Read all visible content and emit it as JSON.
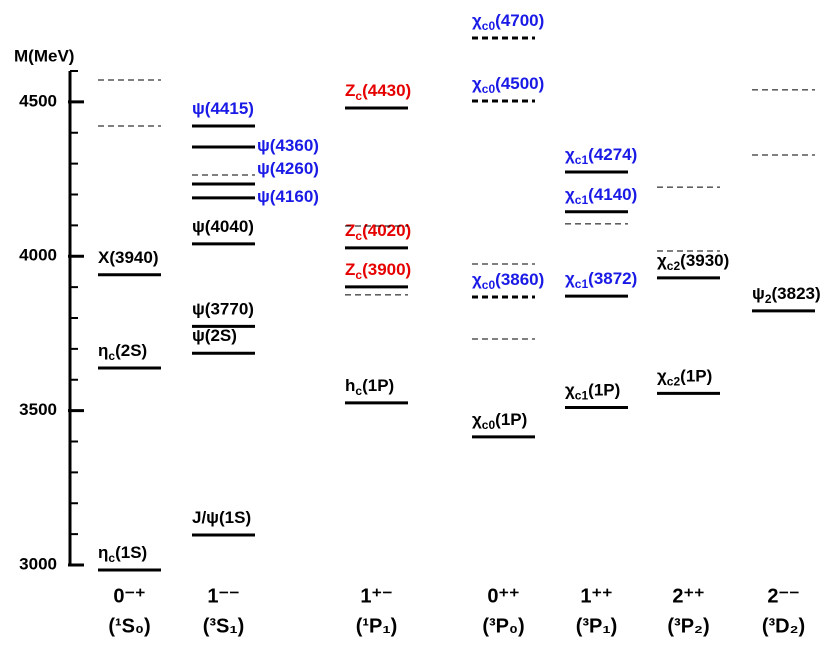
{
  "chart_data": {
    "type": "level-spectrum",
    "y_label": "M(MeV)",
    "ylim": [
      3000,
      4600
    ],
    "yticks": [
      3000,
      3500,
      4000,
      4500
    ],
    "minor_yticks": [
      3100,
      3200,
      3300,
      3400,
      3600,
      3700,
      3800,
      3900,
      4100,
      4200,
      4300,
      4400,
      4600
    ],
    "categories": [
      "0⁻⁺",
      "1⁻⁻",
      "1⁺⁻",
      "0⁺⁺",
      "1⁺⁺",
      "2⁺⁺",
      "2⁻⁻"
    ],
    "subcategories": [
      "(¹S₀)",
      "(³S₁)",
      "(¹P₁)",
      "(³P₀)",
      "(³P₁)",
      "(³P₂)",
      "(³D₂)"
    ],
    "levels": [
      {
        "column": 0,
        "mass": 2984,
        "style": "solid",
        "label_color": "#000000",
        "label": {
          "text": "η",
          "sub": "c",
          "tail": "(1S)"
        }
      },
      {
        "column": 0,
        "mass": 3638,
        "style": "solid",
        "label_color": "#000000",
        "label": {
          "text": "η",
          "sub": "c",
          "tail": "(2S)"
        }
      },
      {
        "column": 0,
        "mass": 3940,
        "style": "solid",
        "label_color": "#000000",
        "label": {
          "text": "X(3940)"
        }
      },
      {
        "column": 0,
        "mass": 4422,
        "style": "dashed"
      },
      {
        "column": 0,
        "mass": 4571,
        "style": "dashed"
      },
      {
        "column": 1,
        "mass": 3097,
        "style": "solid",
        "label_color": "#000000",
        "label": {
          "text": "J/ψ(1S)"
        }
      },
      {
        "column": 1,
        "mass": 3686,
        "style": "solid",
        "label_color": "#000000",
        "label": {
          "text": "ψ(2S)"
        }
      },
      {
        "column": 1,
        "mass": 3773,
        "style": "solid",
        "label_color": "#000000",
        "label": {
          "text": "ψ(3770)"
        }
      },
      {
        "column": 1,
        "mass": 4040,
        "style": "solid",
        "label_color": "#000000",
        "label": {
          "text": "ψ(4040)"
        }
      },
      {
        "column": 1,
        "mass": 4189,
        "style": "solid",
        "label_color": "#1a1ae6",
        "label": {
          "text": "ψ(4160)"
        }
      },
      {
        "column": 1,
        "mass": 4234,
        "style": "solid",
        "label_color": "#1a1ae6",
        "label": {
          "text": "ψ(4260)"
        }
      },
      {
        "column": 1,
        "mass": 4263,
        "style": "dashed"
      },
      {
        "column": 1,
        "mass": 4354,
        "style": "solid",
        "label_color": "#1a1ae6",
        "label": {
          "text": "ψ(4360)"
        }
      },
      {
        "column": 1,
        "mass": 4422,
        "style": "solid",
        "label_color": "#1a1ae6",
        "label": {
          "text": "ψ(4415)"
        }
      },
      {
        "column": 2,
        "mass": 3525,
        "style": "solid",
        "label_color": "#000000",
        "label": {
          "text": "h",
          "sub": "c",
          "tail": "(1P)"
        }
      },
      {
        "column": 2,
        "mass": 3875,
        "style": "dashed"
      },
      {
        "column": 2,
        "mass": 3901,
        "style": "solid",
        "label_color": "#e60000",
        "label": {
          "text": "Z",
          "sub": "c",
          "tail": "(3900)"
        }
      },
      {
        "column": 2,
        "mass": 4027,
        "style": "solid",
        "label_color": "#e60000",
        "label": {
          "text": "Z",
          "sub": "c",
          "tail": "(4020)"
        }
      },
      {
        "column": 2,
        "mass": 4098,
        "style": "dashed"
      },
      {
        "column": 2,
        "mass": 4480,
        "style": "solid",
        "label_color": "#e60000",
        "label": {
          "text": "Z",
          "sub": "c",
          "tail": "(4430)"
        }
      },
      {
        "column": 3,
        "mass": 3415,
        "style": "solid",
        "label_color": "#000000",
        "label": {
          "text": "χ",
          "sub": "c0",
          "tail": "(1P)"
        }
      },
      {
        "column": 3,
        "mass": 3732,
        "style": "dashed"
      },
      {
        "column": 3,
        "mass": 3868,
        "style": "thick-dashed",
        "label_color": "#1a1ae6",
        "label": {
          "text": "χ",
          "sub": "c0",
          "tail": "(3860)"
        }
      },
      {
        "column": 3,
        "mass": 3975,
        "style": "dashed"
      },
      {
        "column": 3,
        "mass": 4503,
        "style": "thick-dashed",
        "label_color": "#1a1ae6",
        "label": {
          "text": "χ",
          "sub": "c0",
          "tail": "(4500)"
        }
      },
      {
        "column": 3,
        "mass": 4707,
        "style": "thick-dashed",
        "label_color": "#1a1ae6",
        "label": {
          "text": "χ",
          "sub": "c0",
          "tail": "(4700)"
        }
      },
      {
        "column": 4,
        "mass": 3510,
        "style": "solid",
        "label_color": "#000000",
        "label": {
          "text": "χ",
          "sub": "c1",
          "tail": "(1P)"
        }
      },
      {
        "column": 4,
        "mass": 3871,
        "style": "solid",
        "label_color": "#1a1ae6",
        "label": {
          "text": "χ",
          "sub": "c1",
          "tail": "(3872)"
        }
      },
      {
        "column": 4,
        "mass": 4105,
        "style": "dashed"
      },
      {
        "column": 4,
        "mass": 4144,
        "style": "solid",
        "label_color": "#1a1ae6",
        "label": {
          "text": "χ",
          "sub": "c1",
          "tail": "(4140)"
        }
      },
      {
        "column": 4,
        "mass": 4273,
        "style": "solid",
        "label_color": "#1a1ae6",
        "label": {
          "text": "χ",
          "sub": "c1",
          "tail": "(4274)"
        }
      },
      {
        "column": 5,
        "mass": 3556,
        "style": "solid",
        "label_color": "#000000",
        "label": {
          "text": "χ",
          "sub": "c2",
          "tail": "(1P)"
        }
      },
      {
        "column": 5,
        "mass": 3930,
        "style": "solid",
        "label_color": "#000000",
        "label": {
          "text": "χ",
          "sub": "c2",
          "tail": "(3930)"
        }
      },
      {
        "column": 5,
        "mass": 4017,
        "style": "dashed"
      },
      {
        "column": 5,
        "mass": 4224,
        "style": "dashed"
      },
      {
        "column": 6,
        "mass": 3823,
        "style": "solid",
        "label_color": "#000000",
        "label": {
          "text": "ψ",
          "sub": "2",
          "tail": "(3823)"
        }
      },
      {
        "column": 6,
        "mass": 4328,
        "style": "dashed"
      },
      {
        "column": 6,
        "mass": 4539,
        "style": "dashed"
      }
    ]
  }
}
